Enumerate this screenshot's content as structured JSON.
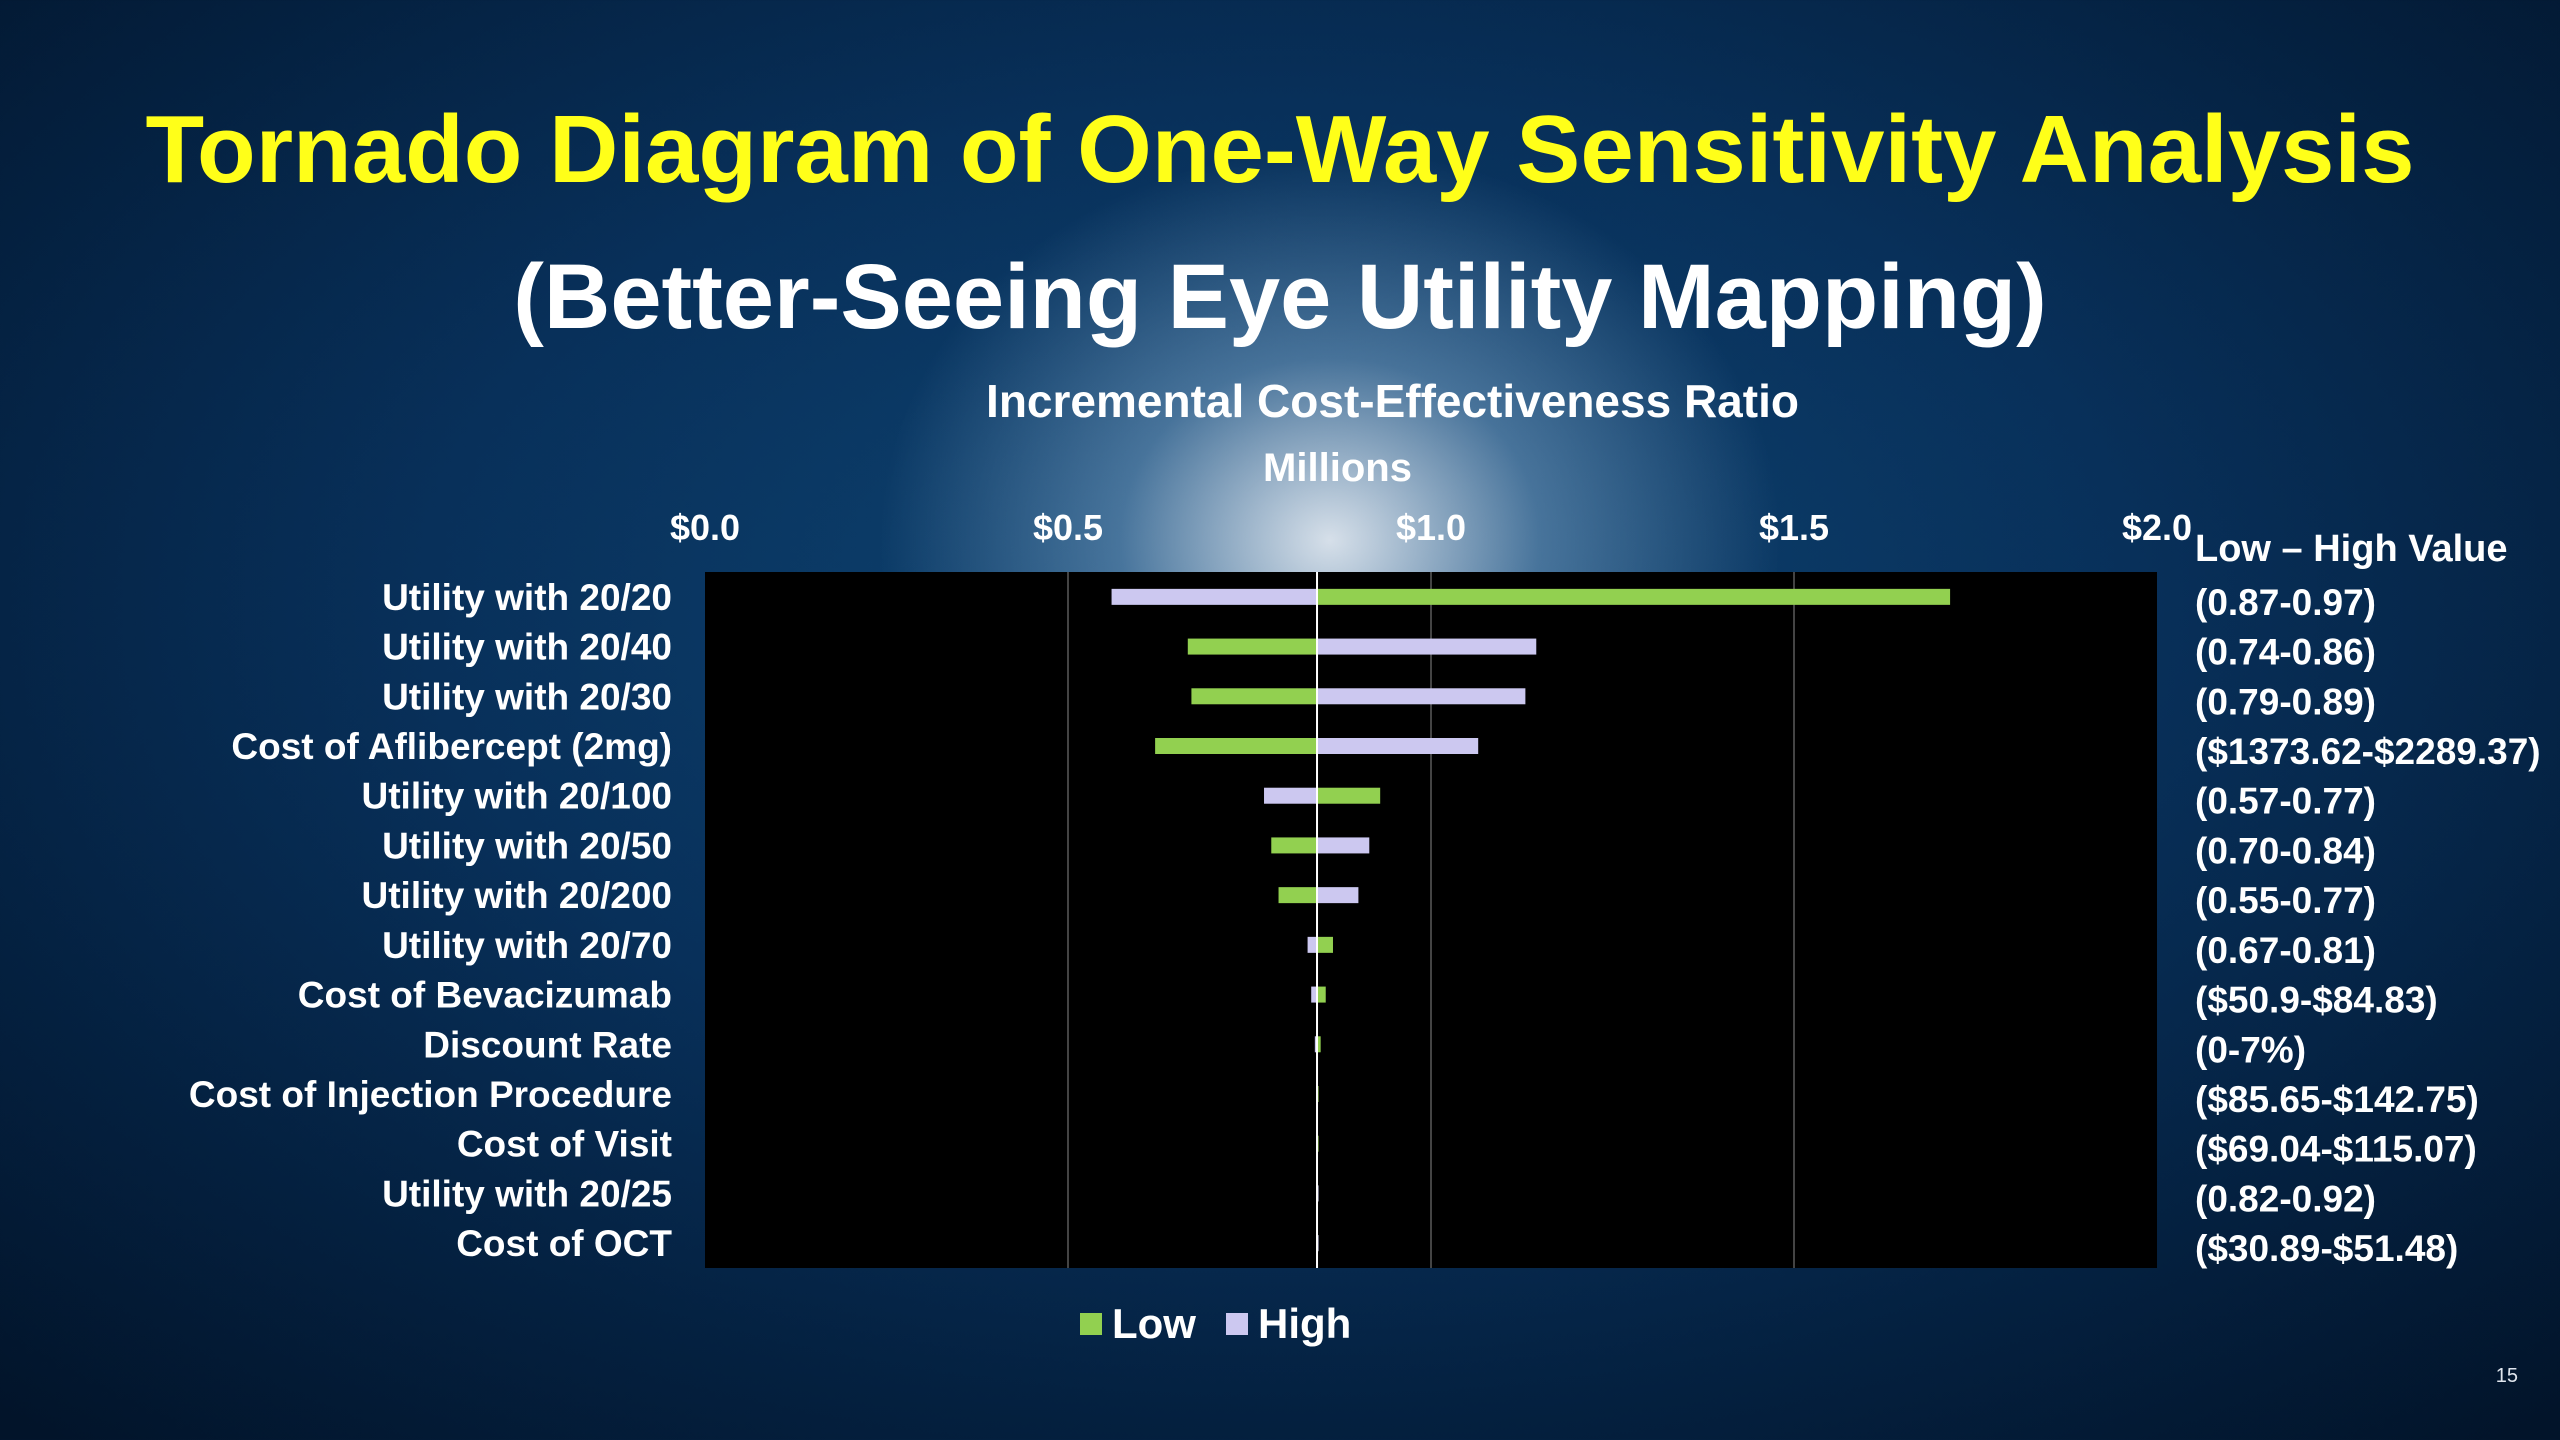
{
  "slide": {
    "title": "Tornado Diagram of One-Way Sensitivity Analysis",
    "subtitle": "(Better-Seeing Eye Utility Mapping)",
    "page_number": "15"
  },
  "chart_data": {
    "type": "bar",
    "orientation": "horizontal",
    "title": "Incremental Cost-Effectiveness Ratio",
    "axis_unit": "Millions",
    "x_ticks": [
      "$0.0",
      "$0.5",
      "$1.0",
      "$1.5",
      "$2.0"
    ],
    "xlim": [
      0,
      2.0
    ],
    "baseline": 0.843,
    "grid": true,
    "legend_placement": "bottom",
    "range_header": "Low – High Value",
    "colors": {
      "Low": "#92d050",
      "High": "#ccc8f0",
      "plot_bg": "#000000",
      "baseline": "#ffffff",
      "grid": "#444444"
    },
    "categories": [
      "Utility with 20/20",
      "Utility with 20/40",
      "Utility with 20/30",
      "Cost of Aflibercept (2mg)",
      "Utility with 20/100",
      "Utility with 20/50",
      "Utility with 20/200",
      "Utility with 20/70",
      "Cost of Bevacizumab",
      "Discount Rate",
      "Cost of Injection Procedure",
      "Cost of Visit",
      "Utility with 20/25",
      "Cost of OCT"
    ],
    "ranges": [
      "(0.87-0.97)",
      "(0.74-0.86)",
      "(0.79-0.89)",
      "($1373.62-$2289.37)",
      "(0.57-0.77)",
      "(0.70-0.84)",
      "(0.55-0.77)",
      "(0.67-0.81)",
      "($50.9-$84.83)",
      "(0-7%)",
      "($85.65-$142.75)",
      "($69.04-$115.07)",
      "(0.82-0.92)",
      "($30.89-$51.48)"
    ],
    "series": [
      {
        "name": "Low",
        "values": [
          1.715,
          0.665,
          0.67,
          0.62,
          0.93,
          0.78,
          0.79,
          0.865,
          0.855,
          0.848,
          0.845,
          0.845,
          0.844,
          0.844
        ]
      },
      {
        "name": "High",
        "values": [
          0.56,
          1.145,
          1.13,
          1.065,
          0.77,
          0.915,
          0.9,
          0.83,
          0.835,
          0.84,
          0.842,
          0.842,
          0.843,
          0.843
        ]
      }
    ]
  }
}
